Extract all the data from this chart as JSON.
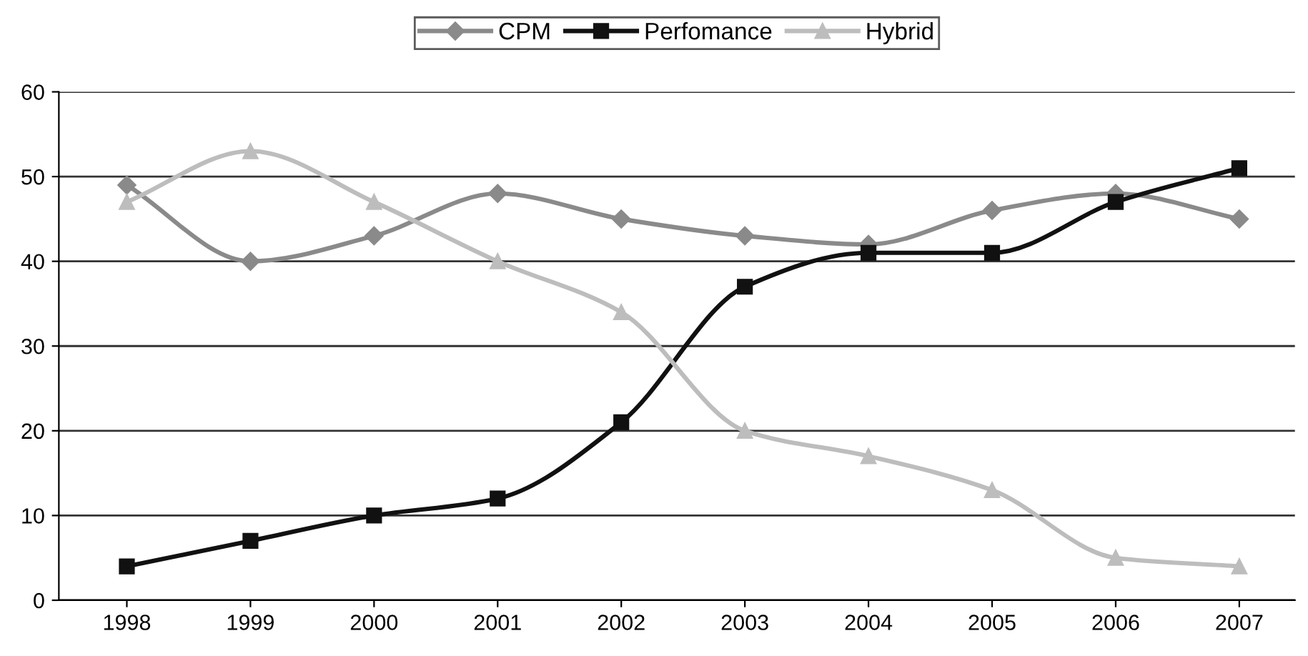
{
  "chart_data": {
    "type": "line",
    "categories": [
      "1998",
      "1999",
      "2000",
      "2001",
      "2002",
      "2003",
      "2004",
      "2005",
      "2006",
      "2007"
    ],
    "series": [
      {
        "name": "CPM",
        "color": "#8a8a8a",
        "marker": "diamond",
        "values": [
          49,
          40,
          43,
          48,
          45,
          43,
          42,
          46,
          48,
          45
        ]
      },
      {
        "name": "Perfomance",
        "color": "#111111",
        "marker": "square",
        "values": [
          4,
          7,
          10,
          12,
          21,
          37,
          41,
          41,
          47,
          51
        ]
      },
      {
        "name": "Hybrid",
        "color": "#bdbdbd",
        "marker": "triangle",
        "values": [
          47,
          53,
          47,
          40,
          34,
          20,
          17,
          13,
          5,
          4
        ]
      }
    ],
    "ylim": [
      0,
      60
    ],
    "yticks": [
      0,
      10,
      20,
      30,
      40,
      50,
      60
    ],
    "grid": "y",
    "legend": "top",
    "line_style": "solid"
  }
}
